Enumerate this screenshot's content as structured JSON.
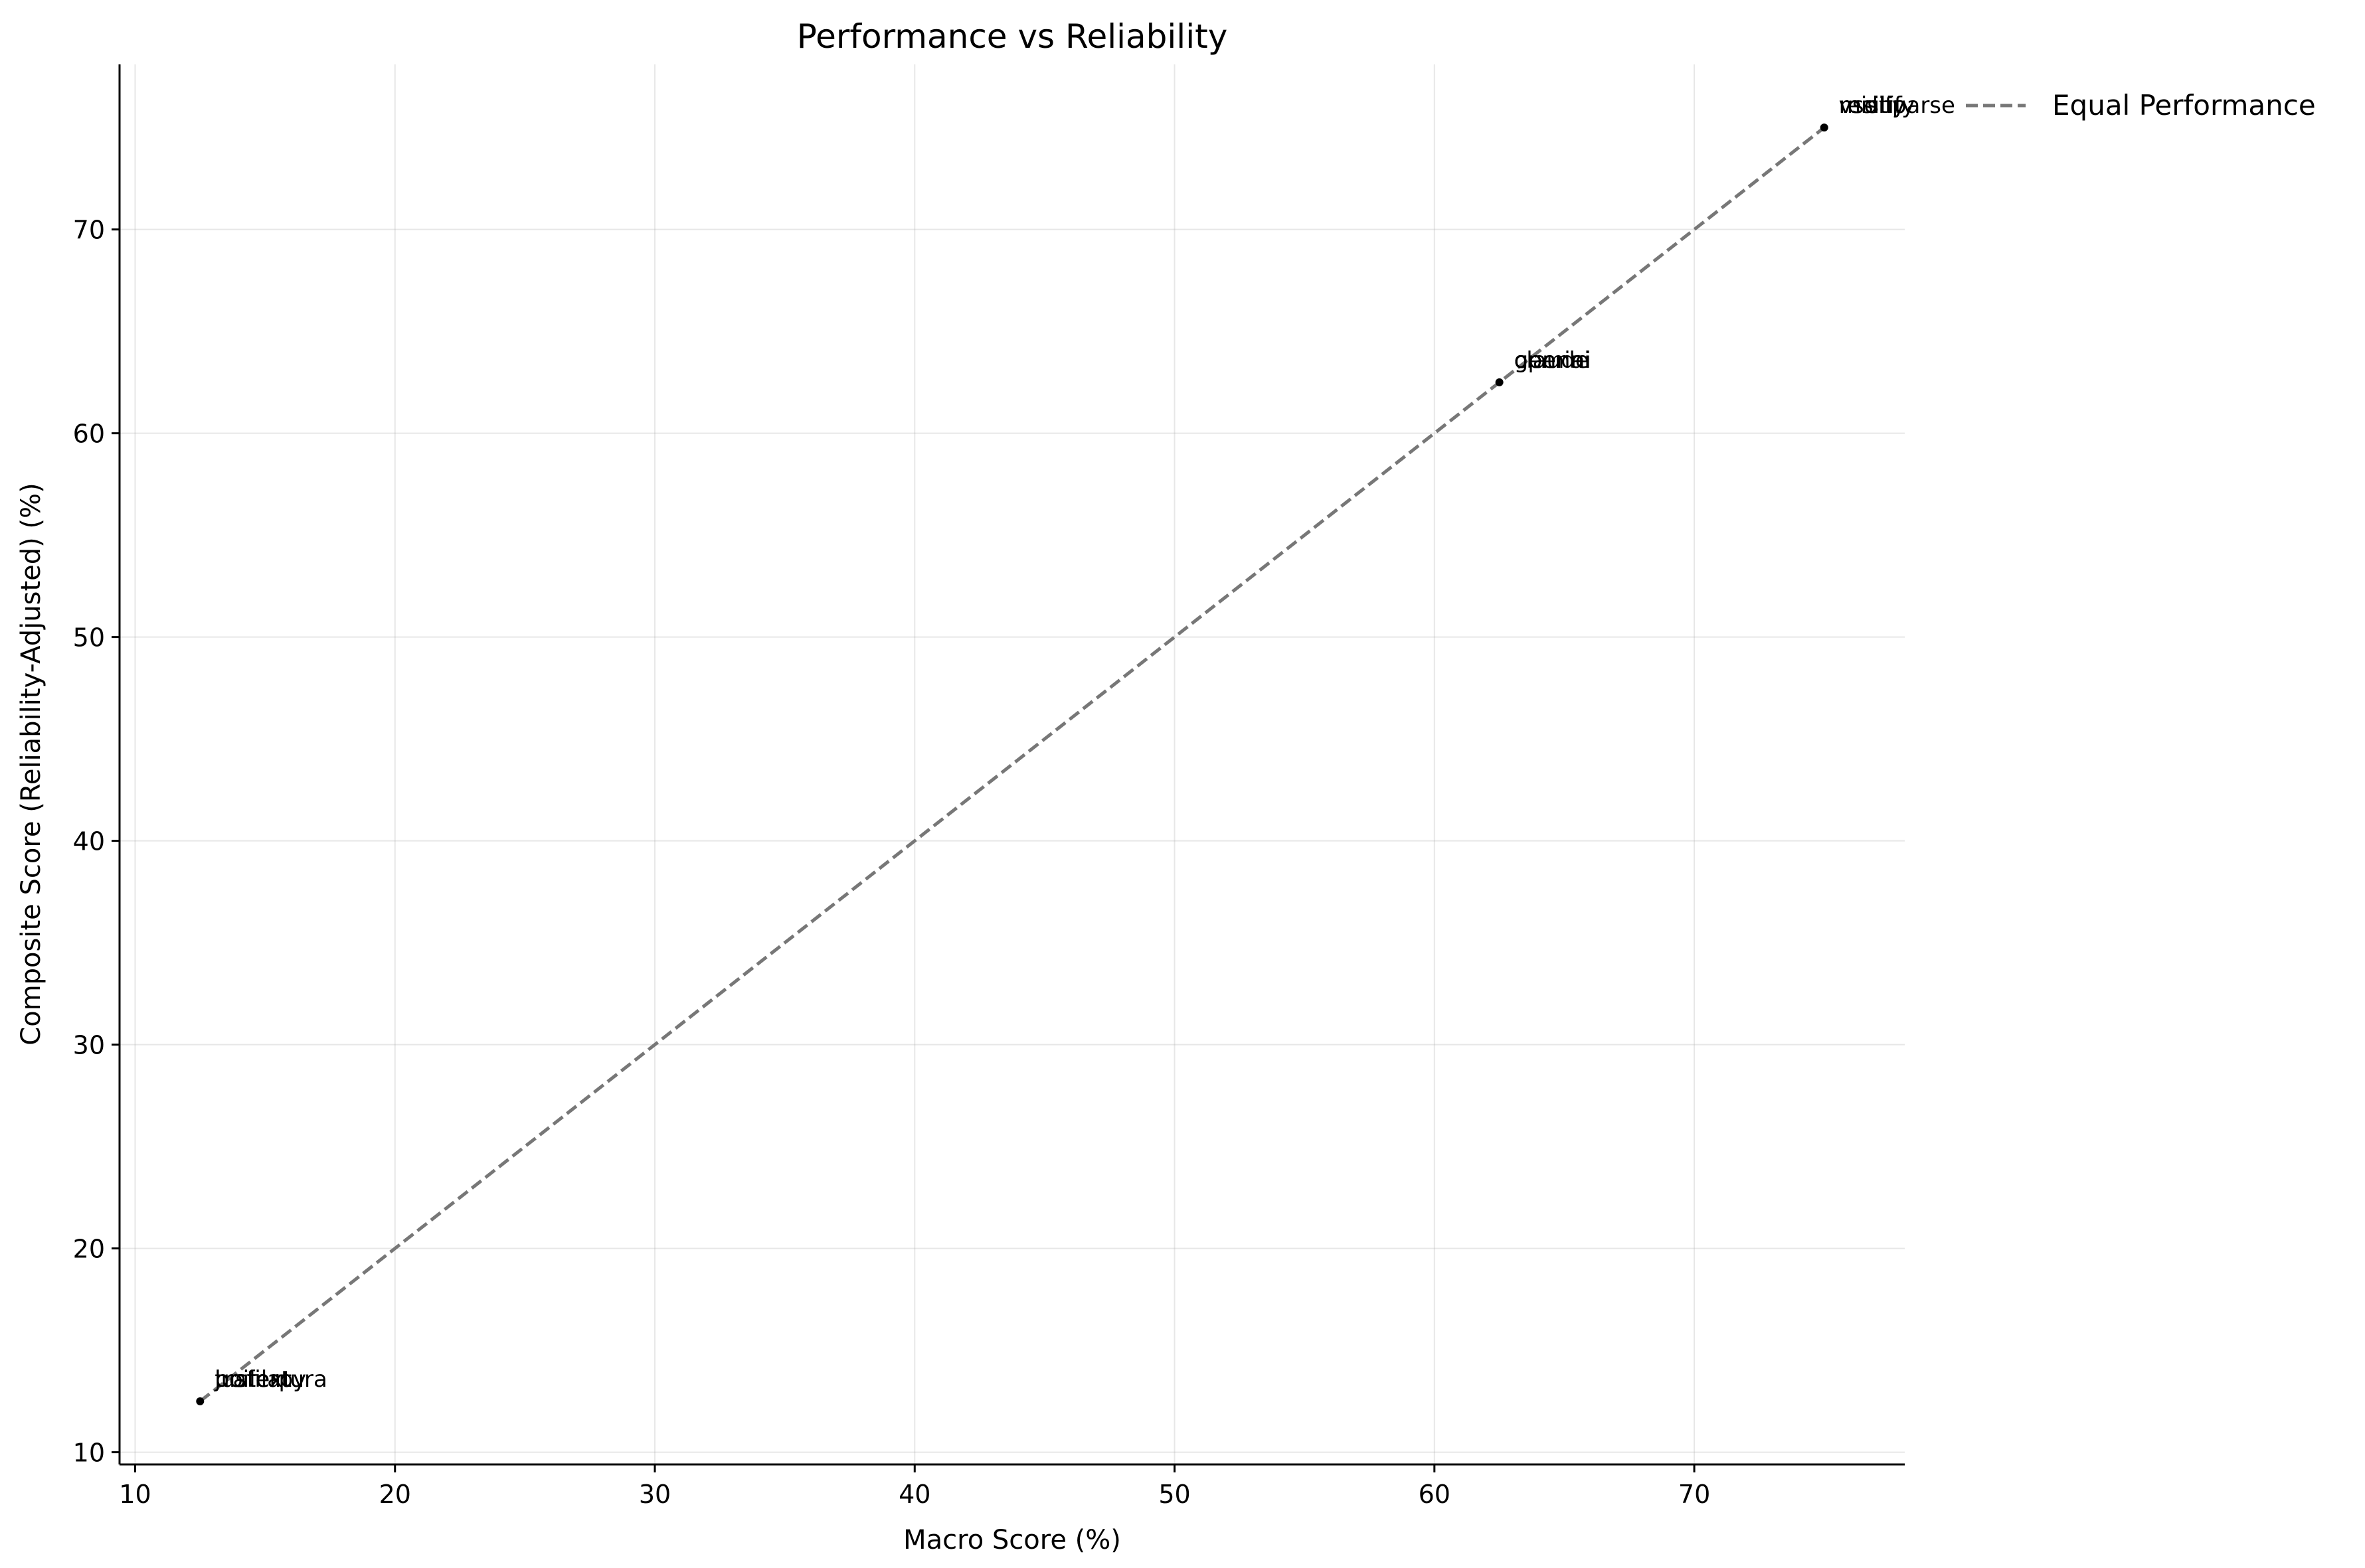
{
  "chart_data": {
    "type": "scatter",
    "title": "Performance vs Reliability",
    "xlabel": "Macro Score (%)",
    "ylabel": "Composite Score (Reliability-Adjusted) (%)",
    "xlim": [
      9.4,
      78.1
    ],
    "ylim": [
      9.4,
      78.1
    ],
    "xticks": [
      10,
      20,
      30,
      40,
      50,
      60,
      70
    ],
    "yticks": [
      10,
      20,
      30,
      40,
      50,
      60,
      70
    ],
    "grid": true,
    "legend": {
      "placement": "upper-right-outside",
      "entries": [
        "Equal Performance"
      ]
    },
    "reference_line": {
      "name": "Equal Performance",
      "x": [
        12.5,
        75
      ],
      "y": [
        12.5,
        75
      ],
      "style": "dashed",
      "color": "#777777"
    },
    "points": [
      {
        "x": 75,
        "y": 75,
        "labels": [
          "resiliparse",
          "vsdify",
          "mistify"
        ]
      },
      {
        "x": 62.5,
        "y": 62.5,
        "labels": [
          "gemini",
          "claude",
          "openai"
        ]
      },
      {
        "x": 12.5,
        "y": 12.5,
        "labels": [
          "trafilatura",
          "justext",
          "boilerpy"
        ]
      }
    ],
    "point_color": "#000000"
  }
}
